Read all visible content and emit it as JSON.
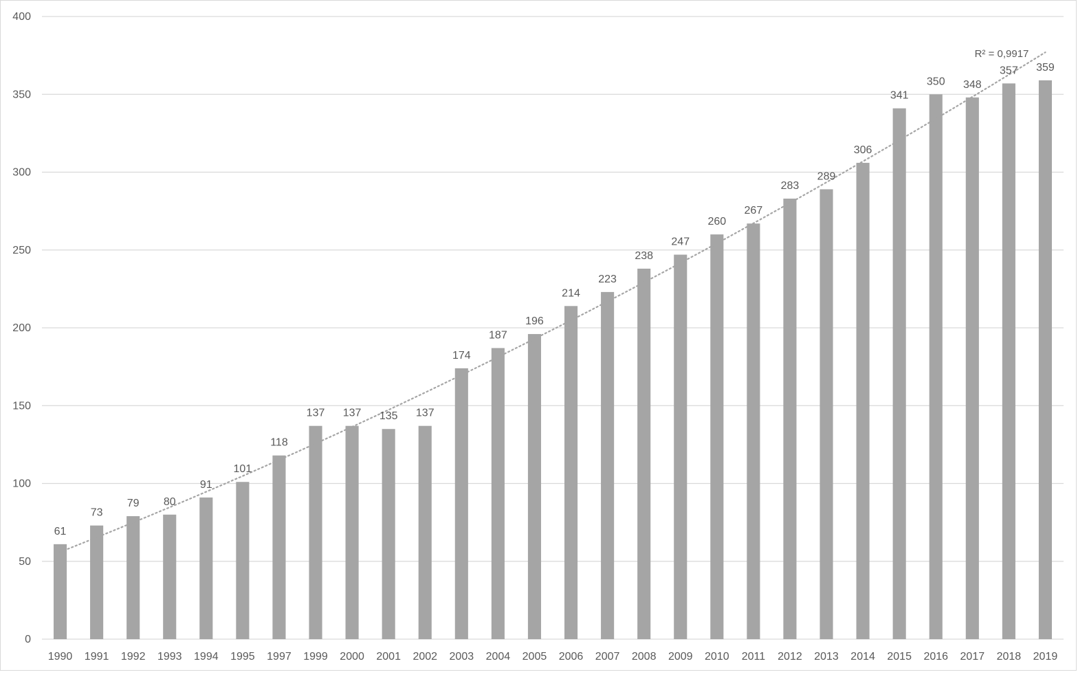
{
  "chart_data": {
    "type": "bar",
    "title": "",
    "xlabel": "",
    "ylabel": "",
    "categories": [
      "1990",
      "1991",
      "1992",
      "1993",
      "1994",
      "1995",
      "1997",
      "1999",
      "2000",
      "2001",
      "2002",
      "2003",
      "2004",
      "2005",
      "2006",
      "2007",
      "2008",
      "2009",
      "2010",
      "2011",
      "2012",
      "2013",
      "2014",
      "2015",
      "2016",
      "2017",
      "2018",
      "2019"
    ],
    "values": [
      61,
      73,
      79,
      80,
      91,
      101,
      118,
      137,
      137,
      135,
      137,
      174,
      187,
      196,
      214,
      223,
      238,
      247,
      260,
      267,
      283,
      289,
      306,
      341,
      350,
      348,
      357,
      359
    ],
    "ylim": [
      0,
      400
    ],
    "yticks": [
      0,
      50,
      100,
      150,
      200,
      250,
      300,
      350,
      400
    ],
    "grid": true,
    "legend": "none",
    "data_labels": true,
    "trendline": {
      "type": "polynomial",
      "style": "dotted",
      "start_value": 56,
      "end_value": 377,
      "r_squared_label": "R² = 0,9917"
    },
    "colors": {
      "bar": "#a5a5a5",
      "grid": "#d9d9d9",
      "text": "#595959",
      "trendline": "#a5a5a5"
    }
  }
}
